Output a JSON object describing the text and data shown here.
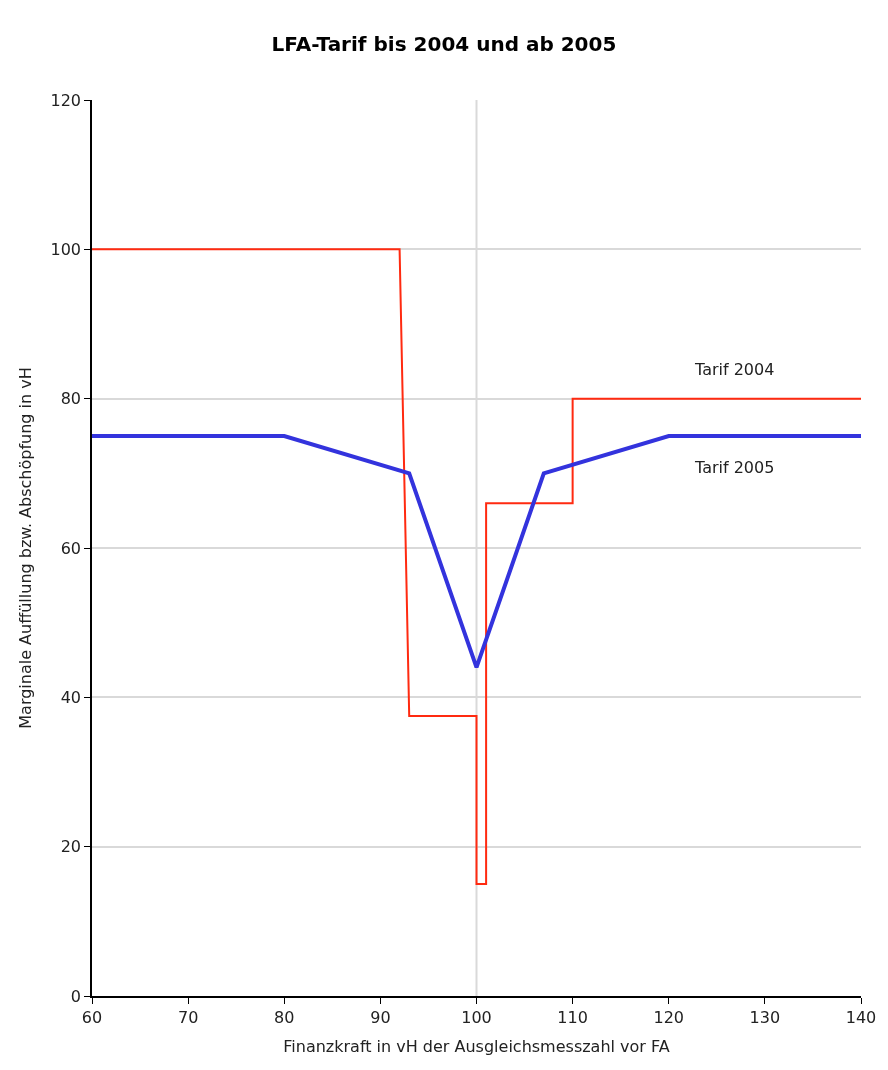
{
  "chart_data": {
    "type": "line",
    "title": "LFA-Tarif bis 2004 und ab 2005",
    "xlabel": "Finanzkraft in vH der Ausgleichsmesszahl vor FA",
    "ylabel": "Marginale Auffüllung bzw. Abschöpfung in vH",
    "series": [
      {
        "name": "Tarif 2004",
        "color": "#ff2a10",
        "x": [
          60,
          92,
          93,
          100,
          100,
          101,
          101,
          110,
          110,
          140
        ],
        "values": [
          100,
          100,
          37.5,
          37.5,
          15,
          15,
          66,
          66,
          80,
          80
        ]
      },
      {
        "name": "Tarif 2005",
        "color": "#3333dd",
        "x": [
          60,
          80,
          93,
          100,
          107,
          120,
          140
        ],
        "values": [
          75,
          75,
          70,
          44,
          70,
          75,
          75
        ]
      }
    ],
    "xlim": [
      60,
      140
    ],
    "xticks": [
      60,
      70,
      80,
      90,
      100,
      110,
      120,
      130,
      140
    ],
    "ylim": [
      0,
      120
    ],
    "yticks": [
      0,
      20,
      40,
      60,
      80,
      100,
      120
    ],
    "grid": "y",
    "legend": false,
    "marker": "none",
    "line_style": "solid",
    "ref_lines": [
      {
        "axis": "x",
        "value": 100,
        "color": "#d9d9d9"
      }
    ]
  }
}
